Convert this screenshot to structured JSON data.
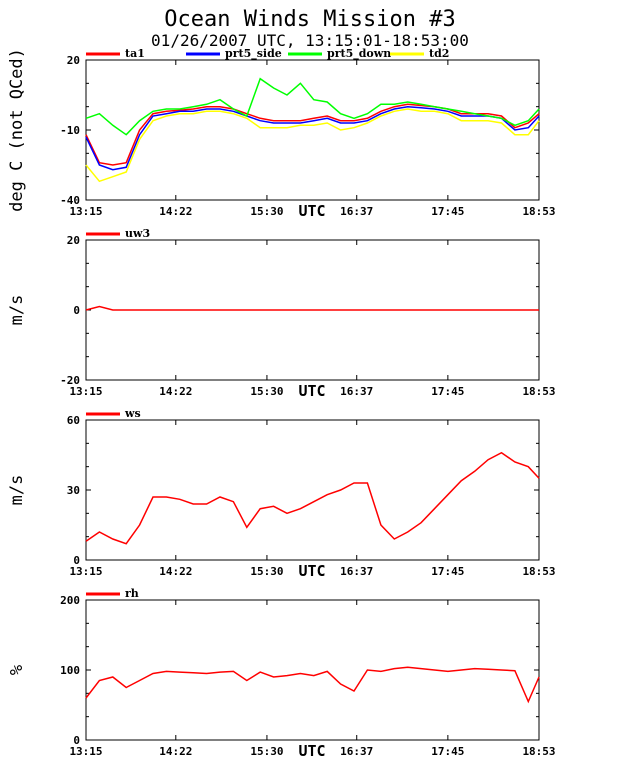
{
  "title": "Ocean Winds Mission #3",
  "subtitle": "01/26/2007  UTC, 13:15:01-18:53:00",
  "x_ticks": [
    "13:15",
    "14:22",
    "15:30",
    "16:37",
    "17:45",
    "18:53"
  ],
  "x_label": "UTC",
  "colors": {
    "ta1": "#ff0000",
    "prt5_side": "#0000ff",
    "prt5_down": "#00ff00",
    "td2": "#ffff00",
    "uw3": "#ff0000",
    "ws": "#ff0000",
    "rh": "#ff0000",
    "axis": "#000000",
    "background": "#ffffff"
  },
  "chart_data": [
    {
      "type": "line",
      "ylabel": "deg C (not QCed)",
      "xlabel": "UTC",
      "ylim": [
        -40,
        20
      ],
      "y_ticks": [
        "20",
        "-10",
        "-40"
      ],
      "x": [
        "13:15",
        "13:25",
        "13:35",
        "13:45",
        "13:55",
        "14:05",
        "14:15",
        "14:25",
        "14:35",
        "14:45",
        "14:55",
        "15:05",
        "15:15",
        "15:25",
        "15:35",
        "15:45",
        "15:55",
        "16:05",
        "16:15",
        "16:25",
        "16:35",
        "16:45",
        "16:55",
        "17:05",
        "17:15",
        "17:25",
        "17:35",
        "17:45",
        "17:55",
        "18:05",
        "18:15",
        "18:25",
        "18:35",
        "18:45",
        "18:53"
      ],
      "series": [
        {
          "name": "ta1",
          "values": [
            -12,
            -24,
            -25,
            -24,
            -10,
            -3,
            -2,
            -1.5,
            -1,
            0,
            0,
            -1,
            -3,
            -5,
            -6,
            -6,
            -6,
            -5,
            -4,
            -6,
            -6,
            -5,
            -2,
            0,
            1,
            0.5,
            0,
            -1,
            -3,
            -3,
            -3,
            -4,
            -9,
            -7,
            -3
          ]
        },
        {
          "name": "prt5_side",
          "values": [
            -13,
            -25,
            -27,
            -26,
            -12,
            -4,
            -3,
            -2,
            -2,
            -1,
            -1,
            -2,
            -4,
            -6,
            -7,
            -7,
            -7,
            -6,
            -5,
            -7,
            -7,
            -6,
            -3,
            -1,
            0,
            -0.5,
            -1,
            -2,
            -4,
            -4,
            -4,
            -5,
            -10,
            -9,
            -4
          ]
        },
        {
          "name": "prt5_down",
          "values": [
            -5,
            -3,
            -8,
            -12,
            -6,
            -2,
            -1,
            -1,
            0,
            1,
            3,
            -1,
            -4,
            12,
            8,
            5,
            10,
            3,
            2,
            -3,
            -5,
            -3,
            1,
            1,
            2,
            1,
            0,
            -1,
            -2,
            -3,
            -4,
            -5,
            -8,
            -6,
            -1
          ]
        },
        {
          "name": "td2",
          "values": [
            -25,
            -32,
            -30,
            -28,
            -14,
            -6,
            -4,
            -3,
            -3,
            -2,
            -2,
            -3,
            -5,
            -9,
            -9,
            -9,
            -8,
            -8,
            -7,
            -10,
            -9,
            -7,
            -4,
            -2,
            -1,
            -2,
            -2,
            -3,
            -6,
            -6,
            -6,
            -7,
            -12,
            -12,
            -6
          ]
        }
      ]
    },
    {
      "type": "line",
      "ylabel": "m/s",
      "xlabel": "UTC",
      "ylim": [
        -20,
        20
      ],
      "y_ticks": [
        "20",
        "0",
        "-20"
      ],
      "x": [
        "13:15",
        "13:25",
        "13:35",
        "13:45",
        "13:55",
        "14:05",
        "14:15",
        "14:25",
        "14:35",
        "14:45",
        "14:55",
        "15:05",
        "15:15",
        "15:25",
        "15:35",
        "15:45",
        "15:55",
        "16:05",
        "16:15",
        "16:25",
        "16:35",
        "16:45",
        "16:55",
        "17:05",
        "17:15",
        "17:25",
        "17:35",
        "17:45",
        "17:55",
        "18:05",
        "18:15",
        "18:25",
        "18:35",
        "18:45",
        "18:53"
      ],
      "series": [
        {
          "name": "uw3",
          "values": [
            0,
            1,
            0,
            0,
            0,
            0,
            0,
            0,
            0,
            0,
            0,
            0,
            0,
            0,
            0,
            0,
            0,
            0,
            0,
            0,
            0,
            0,
            0,
            0,
            0,
            0,
            0,
            0,
            0,
            0,
            0,
            0,
            0,
            0,
            0
          ]
        }
      ]
    },
    {
      "type": "line",
      "ylabel": "m/s",
      "xlabel": "UTC",
      "ylim": [
        0,
        60
      ],
      "y_ticks": [
        "60",
        "30",
        "0"
      ],
      "x": [
        "13:15",
        "13:25",
        "13:35",
        "13:45",
        "13:55",
        "14:05",
        "14:15",
        "14:25",
        "14:35",
        "14:45",
        "14:55",
        "15:05",
        "15:15",
        "15:25",
        "15:35",
        "15:45",
        "15:55",
        "16:05",
        "16:15",
        "16:25",
        "16:35",
        "16:45",
        "16:55",
        "17:05",
        "17:15",
        "17:25",
        "17:35",
        "17:45",
        "17:55",
        "18:05",
        "18:15",
        "18:25",
        "18:35",
        "18:45",
        "18:53"
      ],
      "series": [
        {
          "name": "ws",
          "values": [
            8,
            12,
            9,
            7,
            15,
            27,
            27,
            26,
            24,
            24,
            27,
            25,
            14,
            22,
            23,
            20,
            22,
            25,
            28,
            30,
            33,
            33,
            15,
            9,
            12,
            16,
            22,
            28,
            34,
            38,
            43,
            46,
            42,
            40,
            35
          ]
        }
      ]
    },
    {
      "type": "line",
      "ylabel": "%",
      "xlabel": "UTC",
      "ylim": [
        0,
        200
      ],
      "y_ticks": [
        "200",
        "100",
        "0"
      ],
      "x": [
        "13:15",
        "13:25",
        "13:35",
        "13:45",
        "13:55",
        "14:05",
        "14:15",
        "14:25",
        "14:35",
        "14:45",
        "14:55",
        "15:05",
        "15:15",
        "15:25",
        "15:35",
        "15:45",
        "15:55",
        "16:05",
        "16:15",
        "16:25",
        "16:35",
        "16:45",
        "16:55",
        "17:05",
        "17:15",
        "17:25",
        "17:35",
        "17:45",
        "17:55",
        "18:05",
        "18:15",
        "18:25",
        "18:35",
        "18:45",
        "18:53"
      ],
      "series": [
        {
          "name": "rh",
          "values": [
            60,
            85,
            90,
            75,
            85,
            95,
            98,
            97,
            96,
            95,
            97,
            98,
            85,
            97,
            90,
            92,
            95,
            92,
            98,
            80,
            70,
            100,
            98,
            102,
            104,
            102,
            100,
            98,
            100,
            102,
            101,
            100,
            99,
            55,
            90
          ]
        }
      ]
    }
  ]
}
